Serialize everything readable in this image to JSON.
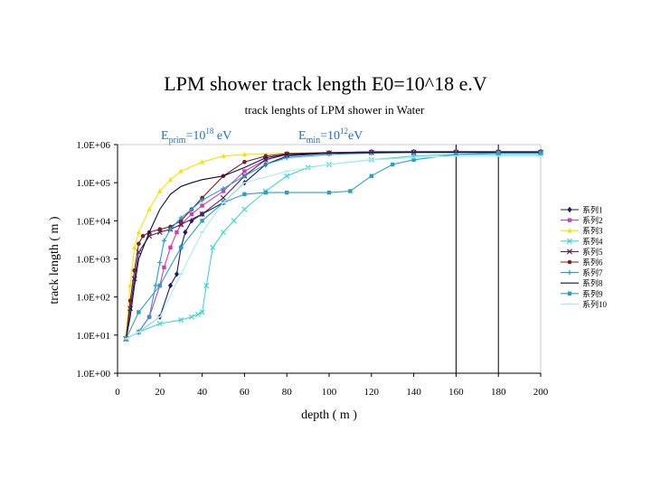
{
  "slide_title": "LPM shower track length E0=10^18 e.V",
  "chart_data": {
    "type": "line",
    "title": "track lenghts of LPM shower in Water",
    "annotations": {
      "eprim_base": "E",
      "eprim_sub": "prim",
      "eprim_rest": "=10",
      "eprim_sup": "18",
      "eprim_unit": " eV",
      "emin_base": "E",
      "emin_sub": "min",
      "emin_rest": "=10",
      "emin_sup": "12",
      "emin_unit": "eV"
    },
    "xlabel": "depth ( m )",
    "ylabel": "track length ( m )",
    "xlim": [
      0,
      200
    ],
    "xticks": [
      "0",
      "20",
      "40",
      "60",
      "80",
      "100",
      "120",
      "140",
      "160",
      "180",
      "200"
    ],
    "y_scale": "log",
    "ylim": [
      1,
      1000000
    ],
    "yticks": [
      "1.0E+00",
      "1.0E+01",
      "1.0E+02",
      "1.0E+03",
      "1.0E+04",
      "1.0E+05",
      "1.0E+06"
    ],
    "vertical_lines": [
      160,
      180
    ],
    "grid": false,
    "legend_position": "right",
    "series": [
      {
        "name": "系列1",
        "color": "#1a1a6e",
        "marker": "diamond",
        "x": [
          4,
          10,
          20,
          25,
          28,
          30,
          32,
          35,
          40,
          50,
          60,
          70,
          80,
          100,
          120,
          140,
          160,
          180,
          200
        ],
        "y": [
          8,
          12,
          30,
          200,
          400,
          2000,
          5000,
          10000,
          15000,
          30000,
          100000,
          300000,
          500000,
          600000,
          650000,
          650000,
          650000,
          650000,
          650000
        ]
      },
      {
        "name": "系列2",
        "color": "#d63bb5",
        "marker": "square",
        "x": [
          4,
          10,
          15,
          20,
          22,
          25,
          28,
          30,
          35,
          40,
          50,
          60,
          70,
          80,
          100,
          120,
          140,
          160,
          180,
          200
        ],
        "y": [
          8,
          12,
          30,
          200,
          600,
          2000,
          5000,
          8000,
          15000,
          25000,
          60000,
          200000,
          400000,
          550000,
          600000,
          650000,
          650000,
          650000,
          650000,
          650000
        ]
      },
      {
        "name": "系列3",
        "color": "#f2e600",
        "marker": "triangle",
        "x": [
          4,
          6,
          8,
          10,
          15,
          20,
          25,
          30,
          40,
          50,
          60,
          80,
          100,
          120,
          140,
          160,
          180,
          200
        ],
        "y": [
          10,
          200,
          2000,
          5000,
          20000,
          60000,
          120000,
          200000,
          350000,
          500000,
          550000,
          600000,
          620000,
          630000,
          630000,
          630000,
          630000,
          630000
        ]
      },
      {
        "name": "系列4",
        "color": "#3dd6d6",
        "marker": "x",
        "x": [
          4,
          10,
          20,
          30,
          35,
          38,
          40,
          42,
          45,
          50,
          55,
          60,
          70,
          80,
          90,
          100,
          120,
          140,
          160,
          180,
          200
        ],
        "y": [
          8,
          12,
          20,
          25,
          30,
          35,
          40,
          200,
          2000,
          5000,
          10000,
          20000,
          60000,
          150000,
          250000,
          300000,
          400000,
          500000,
          550000,
          550000,
          550000
        ]
      },
      {
        "name": "系列5",
        "color": "#552266",
        "marker": "x",
        "x": [
          4,
          6,
          8,
          10,
          15,
          20,
          25,
          30,
          40,
          50,
          60,
          70,
          80,
          100,
          120,
          140,
          160,
          180,
          200
        ],
        "y": [
          8,
          50,
          300,
          1500,
          4000,
          5000,
          6000,
          8000,
          15000,
          40000,
          150000,
          400000,
          550000,
          600000,
          620000,
          620000,
          620000,
          620000,
          620000
        ]
      },
      {
        "name": "系列6",
        "color": "#7a2020",
        "marker": "dot",
        "x": [
          4,
          6,
          8,
          10,
          12,
          15,
          20,
          25,
          30,
          35,
          40,
          50,
          60,
          70,
          80,
          100,
          120,
          140,
          160,
          180,
          200
        ],
        "y": [
          8,
          80,
          500,
          2500,
          4000,
          5000,
          6000,
          7000,
          10000,
          20000,
          40000,
          150000,
          350000,
          500000,
          580000,
          620000,
          640000,
          650000,
          650000,
          650000,
          650000
        ]
      },
      {
        "name": "系列7",
        "color": "#1f9fd6",
        "marker": "plus",
        "x": [
          4,
          10,
          15,
          18,
          20,
          22,
          25,
          30,
          35,
          40,
          50,
          60,
          70,
          80,
          100,
          120,
          140,
          160,
          180,
          200
        ],
        "y": [
          8,
          12,
          30,
          200,
          800,
          3000,
          6000,
          12000,
          20000,
          35000,
          70000,
          150000,
          300000,
          450000,
          550000,
          600000,
          620000,
          620000,
          620000,
          620000
        ]
      },
      {
        "name": "系列8",
        "color": "#0a0a4a",
        "marker": "none",
        "x": [
          4,
          6,
          8,
          10,
          15,
          20,
          25,
          30,
          35,
          40,
          50,
          60,
          70,
          80,
          100,
          120,
          140,
          160,
          180,
          200
        ],
        "y": [
          8,
          30,
          200,
          1000,
          5000,
          20000,
          50000,
          80000,
          100000,
          120000,
          150000,
          250000,
          450000,
          550000,
          600000,
          620000,
          630000,
          630000,
          630000,
          630000
        ]
      },
      {
        "name": "系列9",
        "color": "#2b9fc8",
        "marker": "square",
        "x": [
          4,
          10,
          20,
          30,
          40,
          50,
          60,
          70,
          80,
          100,
          110,
          120,
          130,
          140,
          160,
          180,
          200
        ],
        "y": [
          8,
          40,
          200,
          2000,
          10000,
          30000,
          50000,
          55000,
          55000,
          55000,
          60000,
          150000,
          300000,
          400000,
          550000,
          600000,
          600000
        ]
      },
      {
        "name": "系列10",
        "color": "#a8ecec",
        "marker": "dash",
        "x": [
          4,
          10,
          20,
          30,
          40,
          50,
          60,
          80,
          100,
          120,
          140,
          160,
          180,
          200
        ],
        "y": [
          8,
          12,
          30,
          400,
          5000,
          30000,
          100000,
          200000,
          300000,
          400000,
          450000,
          500000,
          500000,
          500000
        ]
      }
    ]
  }
}
